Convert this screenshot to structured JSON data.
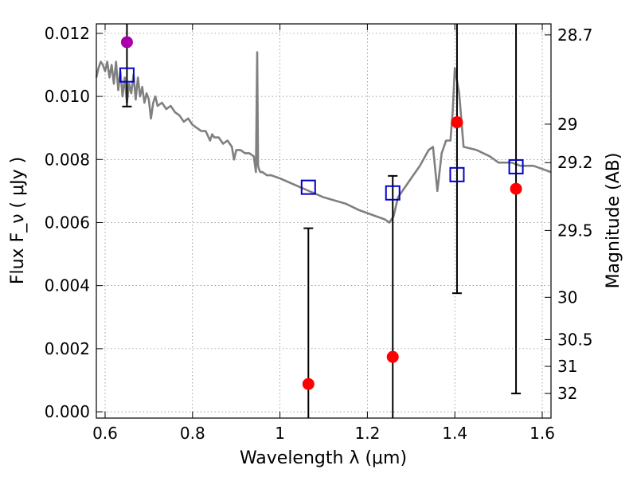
{
  "chart_data": {
    "type": "scatter",
    "xlabel": "Wavelength  λ (μm)",
    "ylabel": "Flux  F_ν  ( μJy )",
    "y2label": "Magnitude (AB)",
    "xlim": [
      0.58,
      1.62
    ],
    "ylim": [
      -0.0002,
      0.0123
    ],
    "grid": true,
    "x_ticks": [
      {
        "value": 0.6,
        "label": "0.6"
      },
      {
        "value": 0.8,
        "label": "0.8"
      },
      {
        "value": 1.0,
        "label": "1"
      },
      {
        "value": 1.2,
        "label": "1.2"
      },
      {
        "value": 1.4,
        "label": "1.4"
      },
      {
        "value": 1.6,
        "label": "1.6"
      }
    ],
    "y_ticks": [
      {
        "value": 0.0,
        "label": "0.000"
      },
      {
        "value": 0.002,
        "label": "0.002"
      },
      {
        "value": 0.004,
        "label": "0.004"
      },
      {
        "value": 0.006,
        "label": "0.006"
      },
      {
        "value": 0.008,
        "label": "0.008"
      },
      {
        "value": 0.01,
        "label": "0.010"
      },
      {
        "value": 0.012,
        "label": "0.012"
      }
    ],
    "y2_ticks": [
      {
        "flux": 0.01195,
        "label": "28.7"
      },
      {
        "flux": 0.00912,
        "label": "29"
      },
      {
        "flux": 0.0079,
        "label": "29.2"
      },
      {
        "flux": 0.00575,
        "label": "29.5"
      },
      {
        "flux": 0.00363,
        "label": "30"
      },
      {
        "flux": 0.00229,
        "label": "30.5"
      },
      {
        "flux": 0.00144,
        "label": "31"
      },
      {
        "flux": 0.00058,
        "label": "32"
      }
    ],
    "series": [
      {
        "kind": "line",
        "color": "#808080",
        "x": [
          0.58,
          0.585,
          0.59,
          0.595,
          0.6,
          0.605,
          0.61,
          0.615,
          0.62,
          0.625,
          0.63,
          0.635,
          0.64,
          0.645,
          0.65,
          0.655,
          0.66,
          0.665,
          0.67,
          0.675,
          0.68,
          0.685,
          0.69,
          0.695,
          0.7,
          0.705,
          0.71,
          0.715,
          0.72,
          0.73,
          0.74,
          0.75,
          0.76,
          0.77,
          0.78,
          0.79,
          0.8,
          0.81,
          0.82,
          0.83,
          0.84,
          0.845,
          0.85,
          0.86,
          0.87,
          0.88,
          0.89,
          0.895,
          0.9,
          0.91,
          0.92,
          0.93,
          0.94,
          0.945,
          0.948,
          0.95,
          0.952,
          0.955,
          0.96,
          0.97,
          0.98,
          1.0,
          1.05,
          1.1,
          1.15,
          1.18,
          1.2,
          1.22,
          1.24,
          1.25,
          1.26,
          1.27,
          1.28,
          1.29,
          1.3,
          1.32,
          1.34,
          1.35,
          1.36,
          1.37,
          1.38,
          1.39,
          1.395,
          1.4,
          1.41,
          1.42,
          1.45,
          1.48,
          1.5,
          1.53,
          1.55,
          1.58,
          1.6,
          1.62
        ],
        "y": [
          0.0106,
          0.0109,
          0.0111,
          0.011,
          0.0108,
          0.0111,
          0.0106,
          0.011,
          0.0104,
          0.0111,
          0.0102,
          0.0108,
          0.01,
          0.0106,
          0.0098,
          0.0104,
          0.0101,
          0.0107,
          0.0099,
          0.0106,
          0.01,
          0.0103,
          0.0098,
          0.0101,
          0.0099,
          0.0093,
          0.0098,
          0.01,
          0.0097,
          0.0098,
          0.0096,
          0.0097,
          0.0095,
          0.0094,
          0.0092,
          0.0093,
          0.0091,
          0.009,
          0.0089,
          0.0089,
          0.0086,
          0.0088,
          0.0087,
          0.0087,
          0.0085,
          0.0086,
          0.0084,
          0.008,
          0.0083,
          0.0083,
          0.0082,
          0.0082,
          0.0081,
          0.0076,
          0.0114,
          0.0078,
          0.0077,
          0.0076,
          0.0076,
          0.0075,
          0.0075,
          0.0074,
          0.0071,
          0.0068,
          0.0066,
          0.0064,
          0.0063,
          0.0062,
          0.0061,
          0.006,
          0.0062,
          0.0068,
          0.007,
          0.0072,
          0.0074,
          0.0078,
          0.0083,
          0.0084,
          0.007,
          0.0082,
          0.0086,
          0.0086,
          0.0095,
          0.0109,
          0.0101,
          0.0084,
          0.0083,
          0.0081,
          0.0079,
          0.0079,
          0.0078,
          0.0078,
          0.0077,
          0.0076
        ]
      },
      {
        "kind": "markers",
        "marker": "circle",
        "color": "#ff0000",
        "points": [
          {
            "x": 1.065,
            "y": 0.00088,
            "ylow": -0.0002,
            "yhigh": 0.00582
          },
          {
            "x": 1.258,
            "y": 0.00174,
            "ylow": -0.0002,
            "yhigh": 0.00748
          },
          {
            "x": 1.405,
            "y": 0.00918,
            "ylow": 0.00376,
            "yhigh": 0.0123
          },
          {
            "x": 1.54,
            "y": 0.00707,
            "ylow": 0.00058,
            "yhigh": 0.0123
          }
        ]
      },
      {
        "kind": "markers",
        "marker": "circle",
        "color": "#aa00aa",
        "points": [
          {
            "x": 0.65,
            "y": 0.01172,
            "ylow": 0.00968,
            "yhigh": 0.0123
          }
        ]
      },
      {
        "kind": "markers",
        "marker": "open-square",
        "color": "#0000cc",
        "points": [
          {
            "x": 0.65,
            "y": 0.01068
          },
          {
            "x": 1.065,
            "y": 0.00712
          },
          {
            "x": 1.258,
            "y": 0.00694
          },
          {
            "x": 1.405,
            "y": 0.00752
          },
          {
            "x": 1.54,
            "y": 0.00777
          }
        ]
      }
    ]
  }
}
